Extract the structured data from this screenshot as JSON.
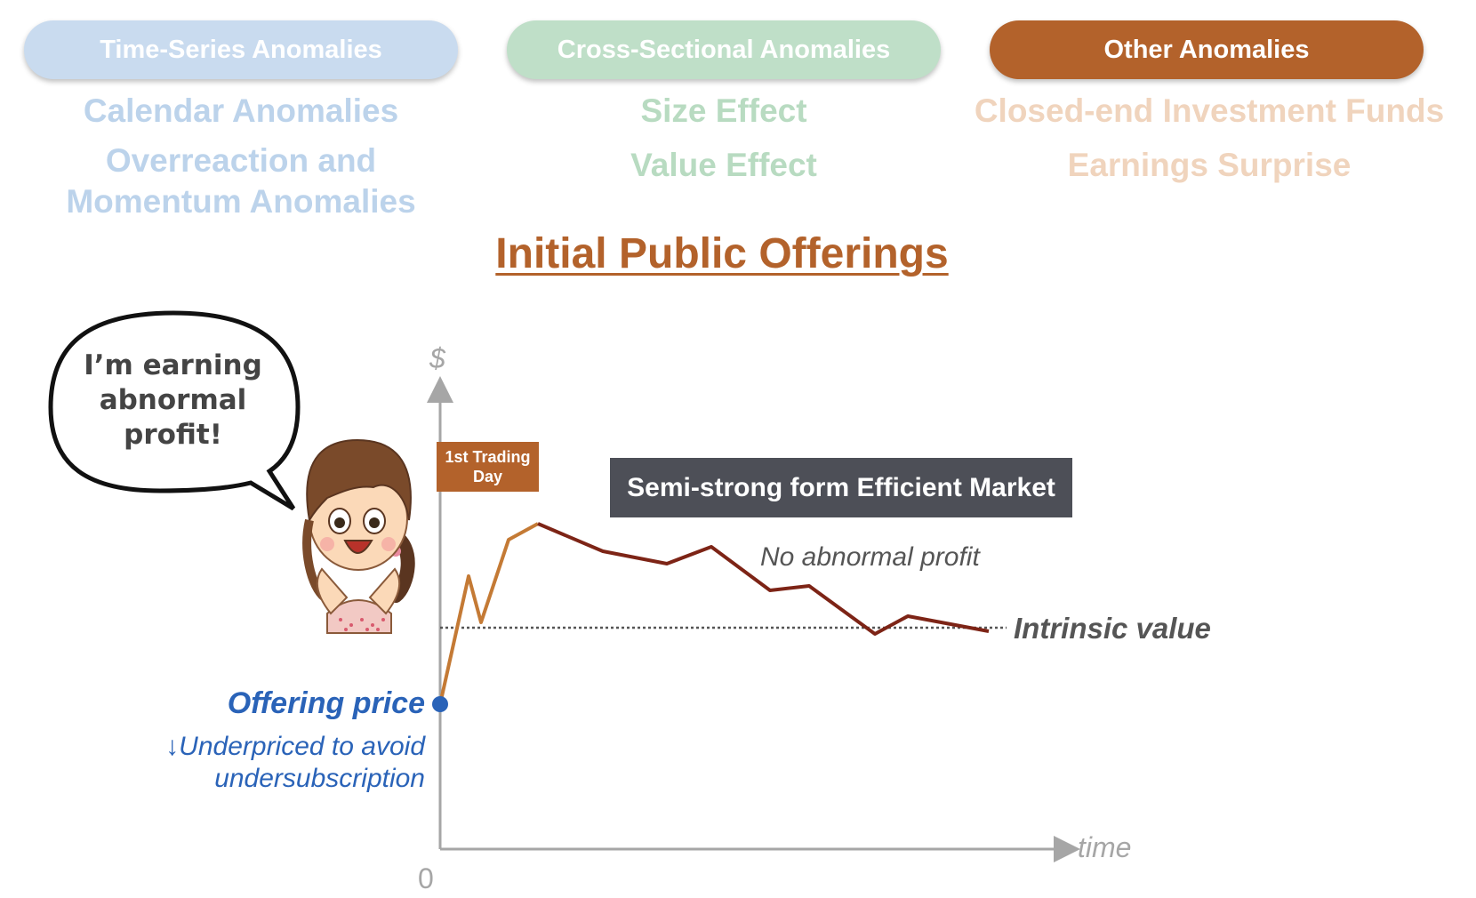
{
  "categories": [
    {
      "label": "Time-Series Anomalies",
      "items": [
        "Calendar Anomalies",
        "Overreaction and Momentum Anomalies"
      ]
    },
    {
      "label": "Cross-Sectional Anomalies",
      "items": [
        "Size Effect",
        "Value Effect"
      ]
    },
    {
      "label": "Other Anomalies",
      "items": [
        "Closed-end Investment Funds",
        "Earnings Surprise"
      ]
    }
  ],
  "colors": {
    "blue": "#c9dbef",
    "green": "#bfdfc8",
    "brown": "#b3622b",
    "dark_red": "#7d2416",
    "offer_blue": "#2a63b8"
  },
  "title": "Initial Public Offerings",
  "speech_bubble": "I’m earning abnormal profit!",
  "diagram": {
    "y_axis_label": "$",
    "x_axis_label": "time",
    "origin_label": "0",
    "first_day_badge": "1st Trading Day",
    "market_box": "Semi-strong form Efficient Market",
    "no_profit_note": "No abnormal profit",
    "intrinsic_label": "Intrinsic value",
    "offering_label": "Offering price",
    "underpriced_note_line1": "↓Underpriced to avoid",
    "underpriced_note_line2": "undersubscription"
  }
}
